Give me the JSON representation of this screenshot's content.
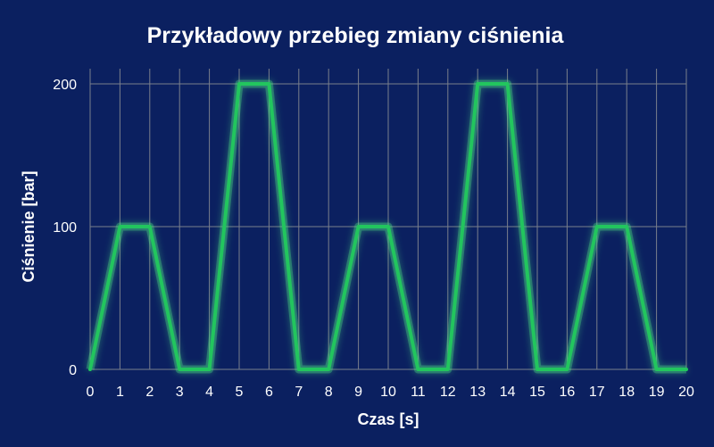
{
  "chart_data": {
    "type": "line",
    "title": "Przykładowy przebieg zmiany ciśnienia",
    "xlabel": "Czas [s]",
    "ylabel": "Ciśnienie [bar]",
    "xlim": [
      0,
      20
    ],
    "ylim": [
      0,
      200
    ],
    "x_ticks": [
      0,
      1,
      2,
      3,
      4,
      5,
      6,
      7,
      8,
      9,
      10,
      11,
      12,
      13,
      14,
      15,
      16,
      17,
      18,
      19,
      20
    ],
    "y_ticks": [
      0,
      100,
      200
    ],
    "grid": true,
    "series": [
      {
        "x": [
          0,
          1,
          2,
          3,
          4,
          5,
          6,
          7,
          8,
          9,
          10,
          11,
          12,
          13,
          14,
          15,
          16,
          17,
          18,
          19,
          20
        ],
        "y": [
          0,
          100,
          100,
          0,
          0,
          200,
          200,
          0,
          0,
          100,
          100,
          0,
          0,
          200,
          200,
          0,
          0,
          100,
          100,
          0,
          0
        ]
      }
    ],
    "colors": {
      "background": "#0b2060",
      "line": "#22c55e",
      "glow": "#4ade80",
      "grid": "#7a7f8c",
      "text": "#ffffff"
    }
  }
}
